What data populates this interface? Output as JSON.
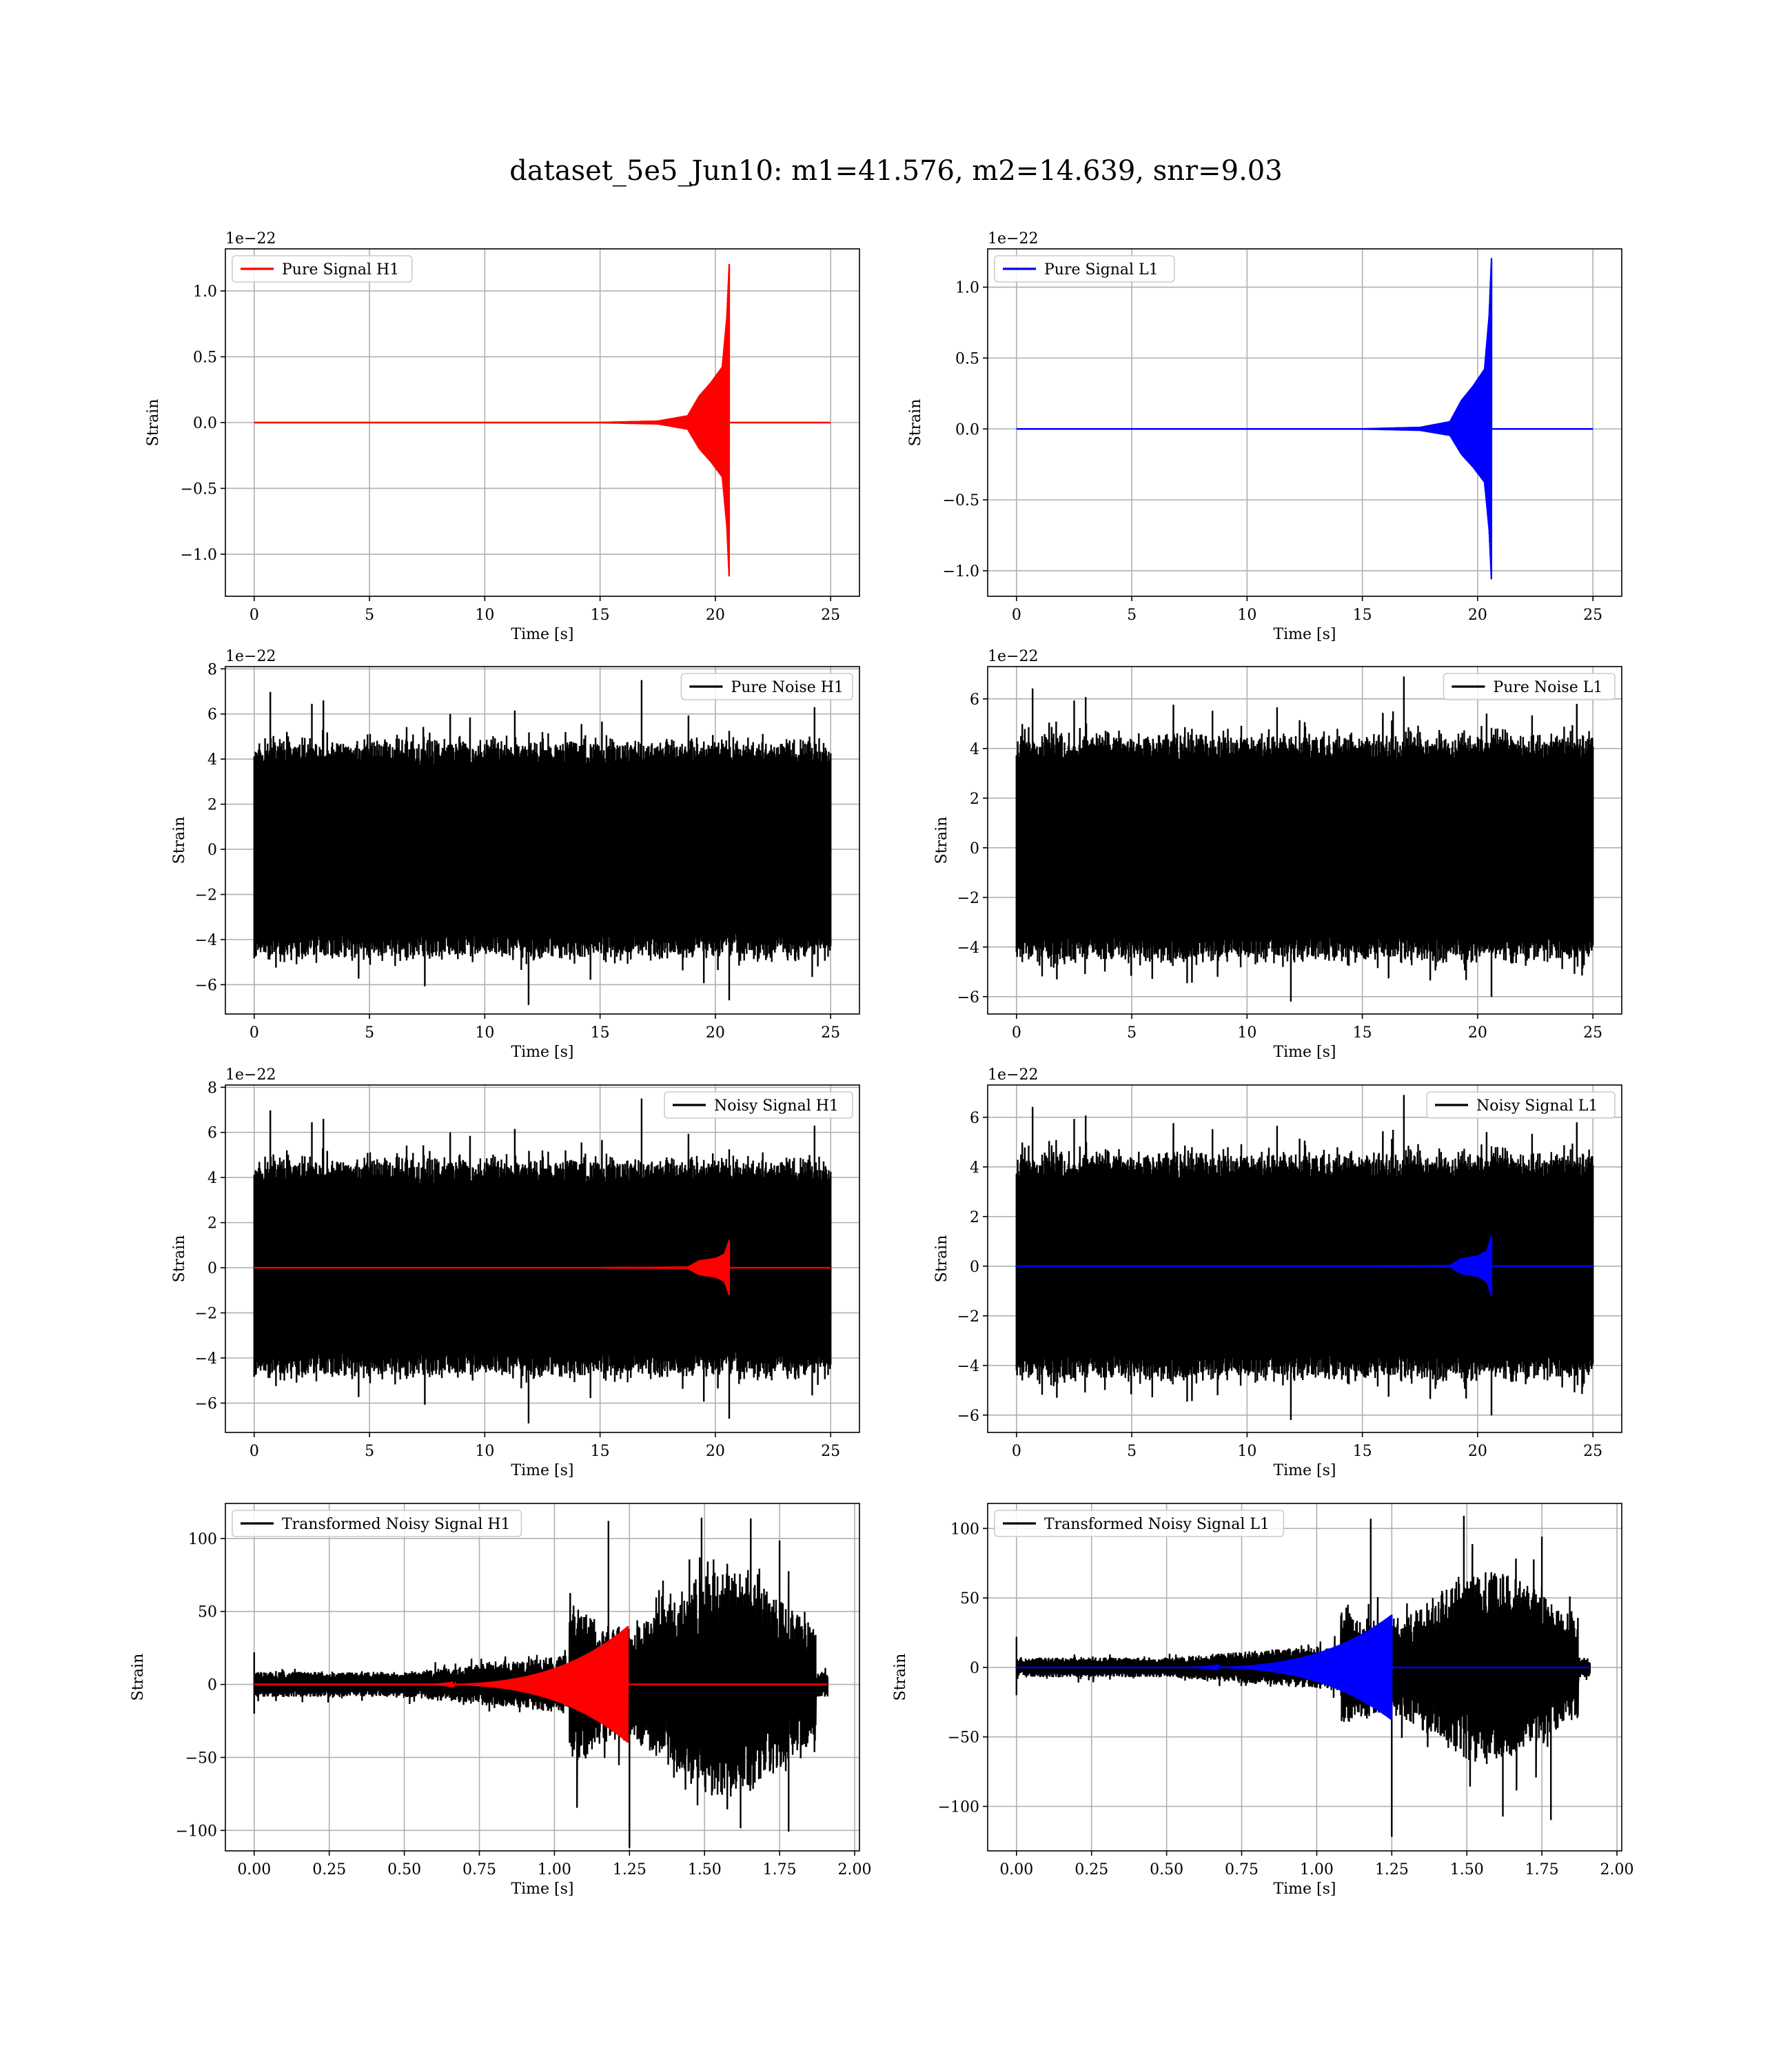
{
  "title": "dataset_5e5_Jun10: m1=41.576, m2=14.639, snr=9.03",
  "chart_data": [
    {
      "type": "line",
      "legend": "Pure Signal H1",
      "legend_position": "upper-left",
      "signal_color": "#ff0000",
      "kind": "signal",
      "xlabel": "Time [s]",
      "ylabel": "Strain",
      "offset_text": "1e−22",
      "xlim": [
        -1.25,
        26.25
      ],
      "ylim": [
        -1.32,
        1.32
      ],
      "xticks": [
        0,
        5,
        10,
        15,
        20,
        25
      ],
      "xtick_labels": [
        "0",
        "5",
        "10",
        "15",
        "20",
        "25"
      ],
      "yticks": [
        -1.0,
        -0.5,
        0.0,
        0.5,
        1.0
      ],
      "ytick_labels": [
        "−1.0",
        "−0.5",
        "0.0",
        "0.5",
        "1.0"
      ],
      "signal": {
        "t_end": 20.6,
        "t_start": 15.0,
        "x_max": 25,
        "env_points": [
          [
            15.0,
            0.0
          ],
          [
            17.5,
            0.01
          ],
          [
            18.8,
            0.05
          ],
          [
            19.3,
            0.2
          ],
          [
            19.8,
            0.3
          ],
          [
            20.3,
            0.42
          ],
          [
            20.5,
            0.8
          ],
          [
            20.6,
            1.2
          ]
        ],
        "min_amp": -1.18
      }
    },
    {
      "type": "line",
      "legend": "Pure Signal L1",
      "legend_position": "upper-left",
      "signal_color": "#0000ff",
      "kind": "signal",
      "xlabel": "Time [s]",
      "ylabel": "Strain",
      "offset_text": "1e−22",
      "xlim": [
        -1.25,
        26.25
      ],
      "ylim": [
        -1.18,
        1.27
      ],
      "xticks": [
        0,
        5,
        10,
        15,
        20,
        25
      ],
      "xtick_labels": [
        "0",
        "5",
        "10",
        "15",
        "20",
        "25"
      ],
      "yticks": [
        -1.0,
        -0.5,
        0.0,
        0.5,
        1.0
      ],
      "ytick_labels": [
        "−1.0",
        "−0.5",
        "0.0",
        "0.5",
        "1.0"
      ],
      "signal": {
        "t_end": 20.6,
        "t_start": 15.0,
        "x_max": 25,
        "env_points": [
          [
            15.0,
            0.0
          ],
          [
            17.5,
            0.01
          ],
          [
            18.8,
            0.05
          ],
          [
            19.3,
            0.2
          ],
          [
            19.8,
            0.3
          ],
          [
            20.3,
            0.42
          ],
          [
            20.5,
            0.8
          ],
          [
            20.6,
            1.2
          ]
        ],
        "min_amp": -1.07
      }
    },
    {
      "type": "line",
      "legend": "Pure Noise H1",
      "legend_position": "upper-right",
      "kind": "noise",
      "xlabel": "Time [s]",
      "ylabel": "Strain",
      "offset_text": "1e−22",
      "xlim": [
        -1.25,
        26.25
      ],
      "ylim": [
        -7.3,
        8.1
      ],
      "xticks": [
        0,
        5,
        10,
        15,
        20,
        25
      ],
      "xtick_labels": [
        "0",
        "5",
        "10",
        "15",
        "20",
        "25"
      ],
      "yticks": [
        -6,
        -4,
        -2,
        0,
        2,
        4,
        6,
        8
      ],
      "ytick_labels": [
        "−6",
        "−4",
        "−2",
        "0",
        "2",
        "4",
        "6",
        "8"
      ],
      "noise": {
        "x_max": 25,
        "band": 3.8,
        "peak": 7.5,
        "trough": -6.9,
        "seed": 11
      }
    },
    {
      "type": "line",
      "legend": "Pure Noise L1",
      "legend_position": "upper-right",
      "kind": "noise",
      "xlabel": "Time [s]",
      "ylabel": "Strain",
      "offset_text": "1e−22",
      "xlim": [
        -1.25,
        26.25
      ],
      "ylim": [
        -6.7,
        7.3
      ],
      "xticks": [
        0,
        5,
        10,
        15,
        20,
        25
      ],
      "xtick_labels": [
        "0",
        "5",
        "10",
        "15",
        "20",
        "25"
      ],
      "yticks": [
        -6,
        -4,
        -2,
        0,
        2,
        4,
        6
      ],
      "ytick_labels": [
        "−6",
        "−4",
        "−2",
        "0",
        "2",
        "4",
        "6"
      ],
      "noise": {
        "x_max": 25,
        "band": 3.6,
        "peak": 6.9,
        "trough": -6.2,
        "seed": 23
      }
    },
    {
      "type": "line",
      "legend": "Noisy Signal H1",
      "legend_position": "upper-right",
      "signal_color": "#ff0000",
      "kind": "noisy",
      "xlabel": "Time [s]",
      "ylabel": "Strain",
      "offset_text": "1e−22",
      "xlim": [
        -1.25,
        26.25
      ],
      "ylim": [
        -7.3,
        8.1
      ],
      "xticks": [
        0,
        5,
        10,
        15,
        20,
        25
      ],
      "xtick_labels": [
        "0",
        "5",
        "10",
        "15",
        "20",
        "25"
      ],
      "yticks": [
        -6,
        -4,
        -2,
        0,
        2,
        4,
        6,
        8
      ],
      "ytick_labels": [
        "−6",
        "−4",
        "−2",
        "0",
        "2",
        "4",
        "6",
        "8"
      ],
      "noise": {
        "x_max": 25,
        "band": 3.8,
        "peak": 7.5,
        "trough": -6.9,
        "seed": 11
      },
      "signal": {
        "t_end": 20.6,
        "t_start": 15.0,
        "x_max": 25,
        "env_points": [
          [
            15.0,
            0.0
          ],
          [
            18.8,
            0.02
          ],
          [
            19.3,
            0.3
          ],
          [
            20.0,
            0.4
          ],
          [
            20.4,
            0.6
          ],
          [
            20.6,
            1.2
          ]
        ],
        "min_amp": -1.2
      }
    },
    {
      "type": "line",
      "legend": "Noisy Signal L1",
      "legend_position": "upper-right",
      "signal_color": "#0000ff",
      "kind": "noisy",
      "xlabel": "Time [s]",
      "ylabel": "Strain",
      "offset_text": "1e−22",
      "xlim": [
        -1.25,
        26.25
      ],
      "ylim": [
        -6.7,
        7.3
      ],
      "xticks": [
        0,
        5,
        10,
        15,
        20,
        25
      ],
      "xtick_labels": [
        "0",
        "5",
        "10",
        "15",
        "20",
        "25"
      ],
      "yticks": [
        -6,
        -4,
        -2,
        0,
        2,
        4,
        6
      ],
      "ytick_labels": [
        "−6",
        "−4",
        "−2",
        "0",
        "2",
        "4",
        "6"
      ],
      "noise": {
        "x_max": 25,
        "band": 3.6,
        "peak": 6.9,
        "trough": -6.2,
        "seed": 23
      },
      "signal": {
        "t_end": 20.6,
        "t_start": 15.0,
        "x_max": 25,
        "env_points": [
          [
            15.0,
            0.0
          ],
          [
            18.8,
            0.02
          ],
          [
            19.3,
            0.3
          ],
          [
            20.0,
            0.4
          ],
          [
            20.4,
            0.6
          ],
          [
            20.6,
            1.2
          ]
        ],
        "min_amp": -1.2
      }
    },
    {
      "type": "line",
      "legend": "Transformed Noisy Signal H1",
      "legend_position": "upper-left",
      "signal_color": "#ff0000",
      "kind": "transformed",
      "xlabel": "Time [s]",
      "ylabel": "Strain",
      "offset_text": "",
      "xlim": [
        -0.096,
        2.016
      ],
      "ylim": [
        -114,
        124
      ],
      "xticks": [
        0.0,
        0.25,
        0.5,
        0.75,
        1.0,
        1.25,
        1.5,
        1.75,
        2.0
      ],
      "xtick_labels": [
        "0.00",
        "0.25",
        "0.50",
        "0.75",
        "1.00",
        "1.25",
        "1.50",
        "1.75",
        "2.00"
      ],
      "yticks": [
        -100,
        -50,
        0,
        50,
        100
      ],
      "ytick_labels": [
        "−100",
        "−50",
        "0",
        "50",
        "100"
      ],
      "transformed": {
        "x_end": 1.91,
        "seed": 37,
        "low_band": 12,
        "high_band": 65,
        "rise": 1.05,
        "drop": 1.87,
        "peak": 112,
        "trough": -112
      },
      "signal": {
        "t_start": 0.5,
        "t_end": 1.245,
        "peak": 40,
        "x_max": 1.91
      }
    },
    {
      "type": "line",
      "legend": "Transformed Noisy Signal L1",
      "legend_position": "upper-left",
      "signal_color": "#0000ff",
      "kind": "transformed",
      "xlabel": "Time [s]",
      "ylabel": "Strain",
      "offset_text": "",
      "xlim": [
        -0.096,
        2.016
      ],
      "ylim": [
        -132,
        118
      ],
      "xticks": [
        0.0,
        0.25,
        0.5,
        0.75,
        1.0,
        1.25,
        1.5,
        1.75,
        2.0
      ],
      "xtick_labels": [
        "0.00",
        "0.25",
        "0.50",
        "0.75",
        "1.00",
        "1.25",
        "1.50",
        "1.75",
        "2.00"
      ],
      "yticks": [
        -100,
        -50,
        0,
        50,
        100
      ],
      "ytick_labels": [
        "−100",
        "−50",
        "0",
        "50",
        "100"
      ],
      "transformed": {
        "x_end": 1.91,
        "seed": 53,
        "low_band": 10,
        "high_band": 58,
        "rise": 1.08,
        "drop": 1.87,
        "peak": 107,
        "trough": -122
      },
      "signal": {
        "t_start": 0.5,
        "t_end": 1.25,
        "peak": 38,
        "x_max": 1.91
      }
    }
  ]
}
